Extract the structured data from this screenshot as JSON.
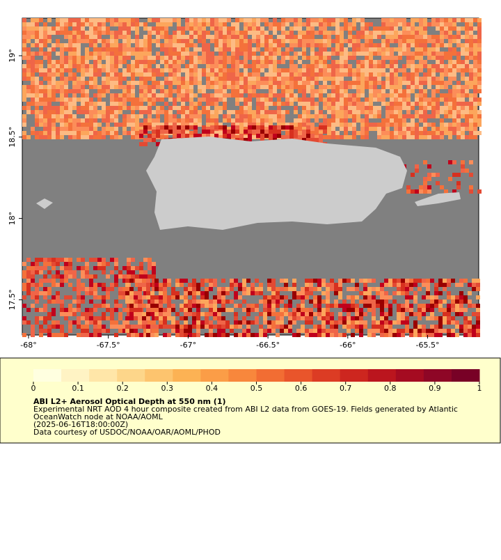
{
  "map": {
    "x_ticks": [
      {
        "value": -68,
        "label": "-68°"
      },
      {
        "value": -67.5,
        "label": "-67.5°"
      },
      {
        "value": -67,
        "label": "-67°"
      },
      {
        "value": -66.5,
        "label": "-66.5°"
      },
      {
        "value": -66,
        "label": "-66°"
      },
      {
        "value": -65.5,
        "label": "-65.5°"
      }
    ],
    "y_ticks": [
      {
        "value": 19,
        "label": "19°"
      },
      {
        "value": 18.5,
        "label": "18.5°"
      },
      {
        "value": 18,
        "label": "18°"
      },
      {
        "value": 17.5,
        "label": "17.5°"
      }
    ]
  },
  "colorbar": {
    "ticks": [
      0,
      0.1,
      0.2,
      0.3,
      0.4,
      0.5,
      0.6,
      0.7,
      0.8,
      0.9,
      1
    ]
  },
  "legend": {
    "title": "ABI L2+ Aerosol Optical Depth at 550 nm (1)",
    "lines": [
      "Experimental NRT AOD 4 hour composite created from ABI L2 data from GOES-19. Fields generated by Atlantic",
      "OceanWatch node at NOAA/AOML",
      "(2025-06-16T18:00:00Z)",
      "Data courtesy of USDOC/NOAA/OAR/AOML/PHOD"
    ]
  }
}
